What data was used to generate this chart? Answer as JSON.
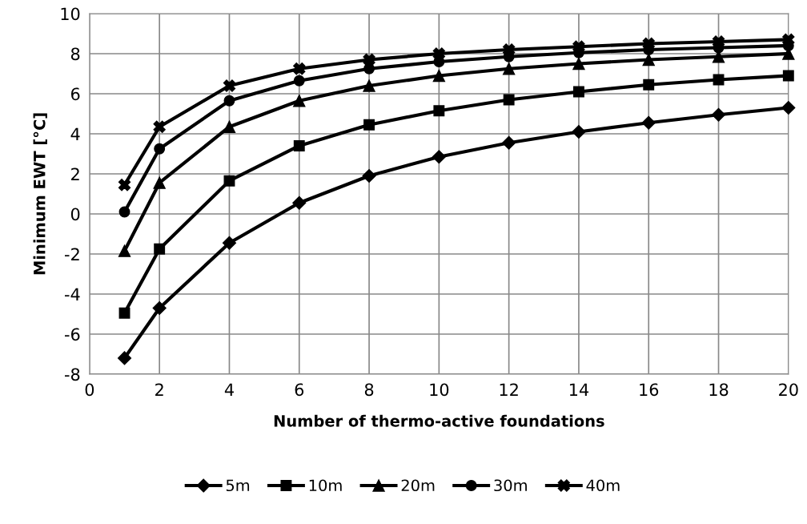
{
  "chart_data": {
    "type": "line",
    "xlabel": "Number of thermo-active foundations",
    "ylabel": "Minimum EWT [°C]",
    "x": [
      1,
      2,
      4,
      6,
      8,
      10,
      12,
      14,
      16,
      18,
      20
    ],
    "series": [
      {
        "name": "5m",
        "color": "#000000",
        "marker": "diamond",
        "values": [
          -7.2,
          -4.7,
          -1.45,
          0.55,
          1.9,
          2.85,
          3.55,
          4.1,
          4.55,
          4.95,
          5.3
        ]
      },
      {
        "name": "10m",
        "color": "#000000",
        "marker": "square",
        "values": [
          -4.95,
          -1.75,
          1.65,
          3.4,
          4.45,
          5.15,
          5.7,
          6.1,
          6.45,
          6.7,
          6.9
        ]
      },
      {
        "name": "20m",
        "color": "#000000",
        "marker": "triangle",
        "values": [
          -1.85,
          1.55,
          4.35,
          5.65,
          6.4,
          6.9,
          7.25,
          7.5,
          7.7,
          7.85,
          8.0
        ]
      },
      {
        "name": "30m",
        "color": "#000000",
        "marker": "circle",
        "values": [
          0.1,
          3.25,
          5.65,
          6.65,
          7.25,
          7.6,
          7.85,
          8.05,
          8.2,
          8.3,
          8.4
        ]
      },
      {
        "name": "40m",
        "color": "#000000",
        "marker": "cross",
        "values": [
          1.45,
          4.35,
          6.4,
          7.25,
          7.7,
          8.0,
          8.2,
          8.35,
          8.5,
          8.6,
          8.7
        ]
      }
    ],
    "xlim": [
      0,
      20
    ],
    "xticks": [
      0,
      2,
      4,
      6,
      8,
      10,
      12,
      14,
      16,
      18,
      20
    ],
    "ylim": [
      -8,
      10
    ],
    "yticks": [
      -8,
      -6,
      -4,
      -2,
      0,
      2,
      4,
      6,
      8,
      10
    ],
    "grid": true,
    "legend": "bottom",
    "line_style": "solid"
  }
}
